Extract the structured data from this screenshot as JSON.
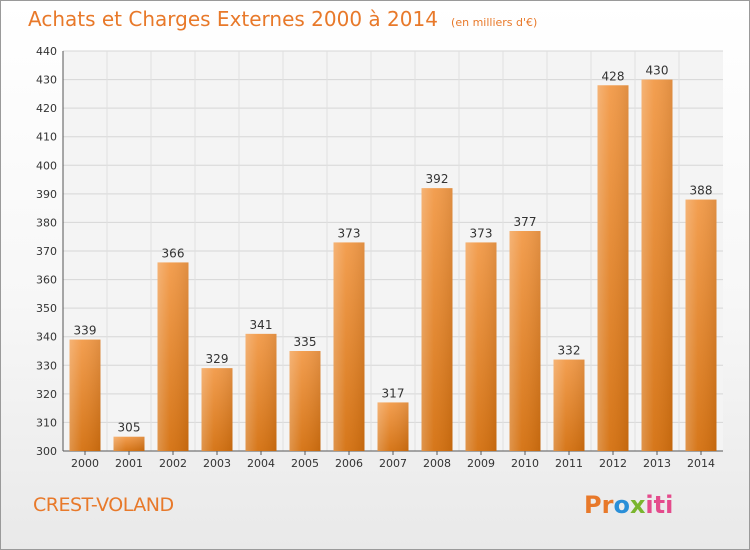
{
  "chart_data": {
    "type": "bar",
    "title": "Achats et Charges Externes 2000 à 2014",
    "subtitle": "(en milliers d'€)",
    "categories": [
      "2000",
      "2001",
      "2002",
      "2003",
      "2004",
      "2005",
      "2006",
      "2007",
      "2008",
      "2009",
      "2010",
      "2011",
      "2012",
      "2013",
      "2014"
    ],
    "values": [
      339,
      305,
      366,
      329,
      341,
      335,
      373,
      317,
      392,
      373,
      377,
      332,
      428,
      430,
      388
    ],
    "ylim": [
      300,
      440
    ],
    "yticks": [
      300,
      310,
      320,
      330,
      340,
      350,
      360,
      370,
      380,
      390,
      400,
      410,
      420,
      430,
      440
    ],
    "grid": true,
    "bar_color": "#f29a48",
    "bar_color_dark": "#d4700f"
  },
  "commune": "CREST-VOLAND",
  "logo": {
    "text": "Proxiti",
    "colors": [
      "#e8792a",
      "#2a8fd8",
      "#7ab52e",
      "#e44b8c"
    ]
  }
}
